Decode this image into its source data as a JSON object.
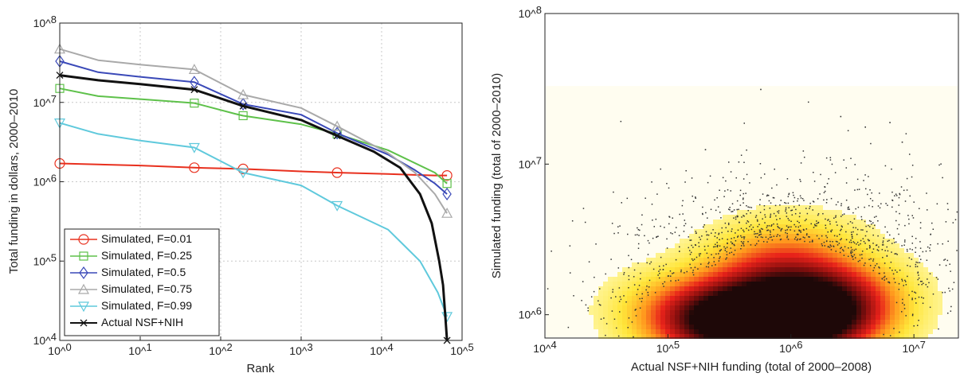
{
  "chart_data": [
    {
      "type": "line",
      "xlabel": "Rank",
      "ylabel": "Total funding in dollars, 2000–2010",
      "xscale": "log",
      "yscale": "log",
      "xlim": [
        1,
        100000
      ],
      "ylim": [
        10000,
        100000000
      ],
      "grid": true,
      "legend_position": "bottom-left",
      "x_ticks": [
        1,
        10,
        100,
        1000,
        10000,
        100000
      ],
      "x_tick_labels": [
        "10^0",
        "10^1",
        "10^2",
        "10^3",
        "10^4",
        "10^5"
      ],
      "y_ticks": [
        10000,
        100000,
        1000000,
        10000000,
        100000000
      ],
      "y_tick_labels": [
        "10^4",
        "10^5",
        "10^6",
        "10^7",
        "10^8"
      ],
      "series": [
        {
          "name": "Simulated, F=0.01",
          "color": "#e8301e",
          "marker": "circle",
          "x": [
            1,
            10,
            50,
            190,
            1000,
            3000,
            12000,
            46000,
            65000
          ],
          "y": [
            1700000,
            1600000,
            1500000,
            1450000,
            1350000,
            1300000,
            1250000,
            1200000,
            1200000
          ],
          "marker_x": [
            1,
            47,
            190,
            2800,
            65000
          ]
        },
        {
          "name": "Simulated, F=0.25",
          "color": "#5ec14a",
          "marker": "square",
          "x": [
            1,
            3,
            10,
            47,
            150,
            190,
            1000,
            2800,
            12000,
            46000,
            65000
          ],
          "y": [
            15000000,
            12000000,
            11000000,
            9800000,
            7200000,
            6800000,
            5300000,
            4000000,
            2500000,
            1300000,
            950000
          ],
          "marker_x": [
            1,
            47,
            190,
            2800,
            65000
          ]
        },
        {
          "name": "Simulated, F=0.5",
          "color": "#3a49b8",
          "marker": "diamond",
          "x": [
            1,
            3,
            10,
            47,
            190,
            1000,
            2800,
            12000,
            26000,
            46000,
            65000
          ],
          "y": [
            33000000,
            24000000,
            21000000,
            18000000,
            9500000,
            7000000,
            4100000,
            2200000,
            1400000,
            950000,
            700000
          ],
          "marker_x": [
            1,
            47,
            190,
            2800,
            65000
          ]
        },
        {
          "name": "Simulated, F=0.75",
          "color": "#a9a9a9",
          "marker": "triangle-up",
          "x": [
            1,
            3,
            10,
            47,
            190,
            1000,
            2800,
            12000,
            26000,
            46000,
            65000
          ],
          "y": [
            47000000,
            34000000,
            30000000,
            26000000,
            12500000,
            8500000,
            5000000,
            2300000,
            1300000,
            700000,
            400000
          ],
          "marker_x": [
            1,
            47,
            190,
            2800,
            65000
          ]
        },
        {
          "name": "Simulated, F=0.99",
          "color": "#5fc9dc",
          "marker": "triangle-down",
          "x": [
            1,
            3,
            10,
            47,
            190,
            1000,
            2800,
            12000,
            30000,
            50000,
            65000
          ],
          "y": [
            5500000,
            4000000,
            3300000,
            2700000,
            1300000,
            900000,
            500000,
            250000,
            100000,
            40000,
            20000
          ],
          "marker_x": [
            1,
            47,
            190,
            2800,
            65000
          ]
        },
        {
          "name": "Actual NSF+NIH",
          "color": "#111111",
          "marker": "x",
          "x": [
            1,
            3,
            10,
            47,
            190,
            1000,
            2800,
            8000,
            17000,
            30000,
            42000,
            52000,
            58000,
            62000,
            65000
          ],
          "y": [
            22000000,
            19000000,
            17000000,
            14500000,
            9000000,
            6000000,
            3800000,
            2400000,
            1500000,
            700000,
            300000,
            100000,
            50000,
            20000,
            10000
          ],
          "marker_x": [
            1,
            47,
            190,
            2800,
            65000
          ]
        }
      ]
    },
    {
      "type": "heatmap",
      "xlabel": "Actual NSF+NIH funding (total of 2000–2008)",
      "ylabel": "Simulated funding (total of 2000–2010)",
      "xscale": "log",
      "yscale": "log",
      "xlim": [
        10000,
        23000000
      ],
      "ylim": [
        700000,
        100000000
      ],
      "x_ticks": [
        10000,
        100000,
        1000000,
        10000000
      ],
      "x_tick_labels": [
        "10^4",
        "10^5",
        "10^6",
        "10^7"
      ],
      "y_ticks": [
        1000000,
        10000000,
        100000000
      ],
      "y_tick_labels": [
        "10^6",
        "10^7",
        "10^8"
      ],
      "colormap": [
        "#fffde4",
        "#fff6a0",
        "#ffe63a",
        "#ff9a1e",
        "#e8221a",
        "#8a0f0e",
        "#1e0808"
      ],
      "density_peaks": [
        {
          "x": 600000,
          "y": 900000,
          "level": 1.0
        },
        {
          "x": 1400000,
          "y": 950000,
          "level": 0.95
        },
        {
          "x": 250000,
          "y": 880000,
          "level": 0.6
        },
        {
          "x": 2000000,
          "y": 1400000,
          "level": 0.45
        },
        {
          "x": 700000,
          "y": 1800000,
          "level": 0.35
        },
        {
          "x": 1000000,
          "y": 2800000,
          "level": 0.2
        },
        {
          "x": 150000,
          "y": 1200000,
          "level": 0.2
        }
      ],
      "scatter_color": "#333333"
    }
  ]
}
